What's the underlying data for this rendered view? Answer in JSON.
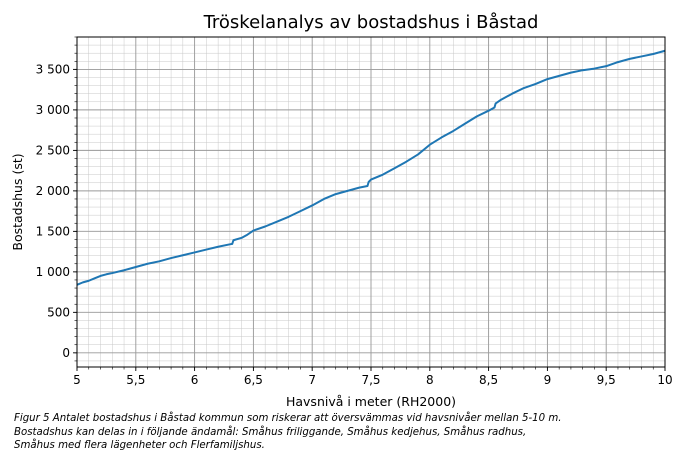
{
  "chart_data": {
    "type": "line",
    "title": "Tröskelanalys av bostadshus i Båstad",
    "xlabel": "Havsnivå i meter (RH2000)",
    "ylabel": "Bostadshus (st)",
    "xlim": [
      5,
      10
    ],
    "ylim": [
      -175,
      3900
    ],
    "x_ticks": [
      5,
      5.5,
      6,
      6.5,
      7,
      7.5,
      8,
      8.5,
      9,
      9.5,
      10
    ],
    "x_tick_labels": [
      "5",
      "5,5",
      "6",
      "6,5",
      "7",
      "7,5",
      "8",
      "8,5",
      "9",
      "9,5",
      "10"
    ],
    "y_ticks": [
      0,
      500,
      1000,
      1500,
      2000,
      2500,
      3000,
      3500
    ],
    "y_tick_labels": [
      "0",
      "500",
      "1 000",
      "1 500",
      "2 000",
      "2 500",
      "3 000",
      "3 500"
    ],
    "grid": true,
    "minor_grid": true,
    "series": [
      {
        "color": "#1f77b4",
        "x": [
          5.0,
          5.05,
          5.1,
          5.15,
          5.2,
          5.25,
          5.3,
          5.4,
          5.5,
          5.6,
          5.7,
          5.8,
          5.9,
          6.0,
          6.1,
          6.2,
          6.3,
          6.32,
          6.33,
          6.4,
          6.45,
          6.5,
          6.6,
          6.7,
          6.8,
          6.9,
          7.0,
          7.1,
          7.2,
          7.3,
          7.4,
          7.47,
          7.48,
          7.5,
          7.6,
          7.7,
          7.8,
          7.9,
          8.0,
          8.1,
          8.2,
          8.3,
          8.4,
          8.5,
          8.55,
          8.56,
          8.6,
          8.7,
          8.8,
          8.9,
          9.0,
          9.1,
          9.2,
          9.3,
          9.4,
          9.5,
          9.6,
          9.7,
          9.8,
          9.9,
          10.0
        ],
        "y": [
          840,
          870,
          890,
          920,
          950,
          970,
          985,
          1020,
          1060,
          1100,
          1130,
          1170,
          1205,
          1240,
          1275,
          1310,
          1340,
          1345,
          1390,
          1420,
          1460,
          1510,
          1560,
          1620,
          1680,
          1750,
          1820,
          1900,
          1960,
          2000,
          2040,
          2060,
          2110,
          2140,
          2200,
          2280,
          2360,
          2450,
          2570,
          2660,
          2740,
          2830,
          2920,
          2990,
          3030,
          3080,
          3120,
          3200,
          3270,
          3320,
          3380,
          3420,
          3460,
          3490,
          3510,
          3540,
          3590,
          3630,
          3660,
          3690,
          3730
        ]
      }
    ]
  },
  "caption": {
    "line1": "Figur 5 Antalet bostadshus i Båstad kommun som riskerar att översvämmas vid havsnivåer mellan 5-10 m.",
    "line2": "Bostadshus kan delas in i följande ändamål: Småhus friliggande, Småhus kedjehus, Småhus radhus,",
    "line3": "Småhus med flera lägenheter och Flerfamiljshus."
  }
}
